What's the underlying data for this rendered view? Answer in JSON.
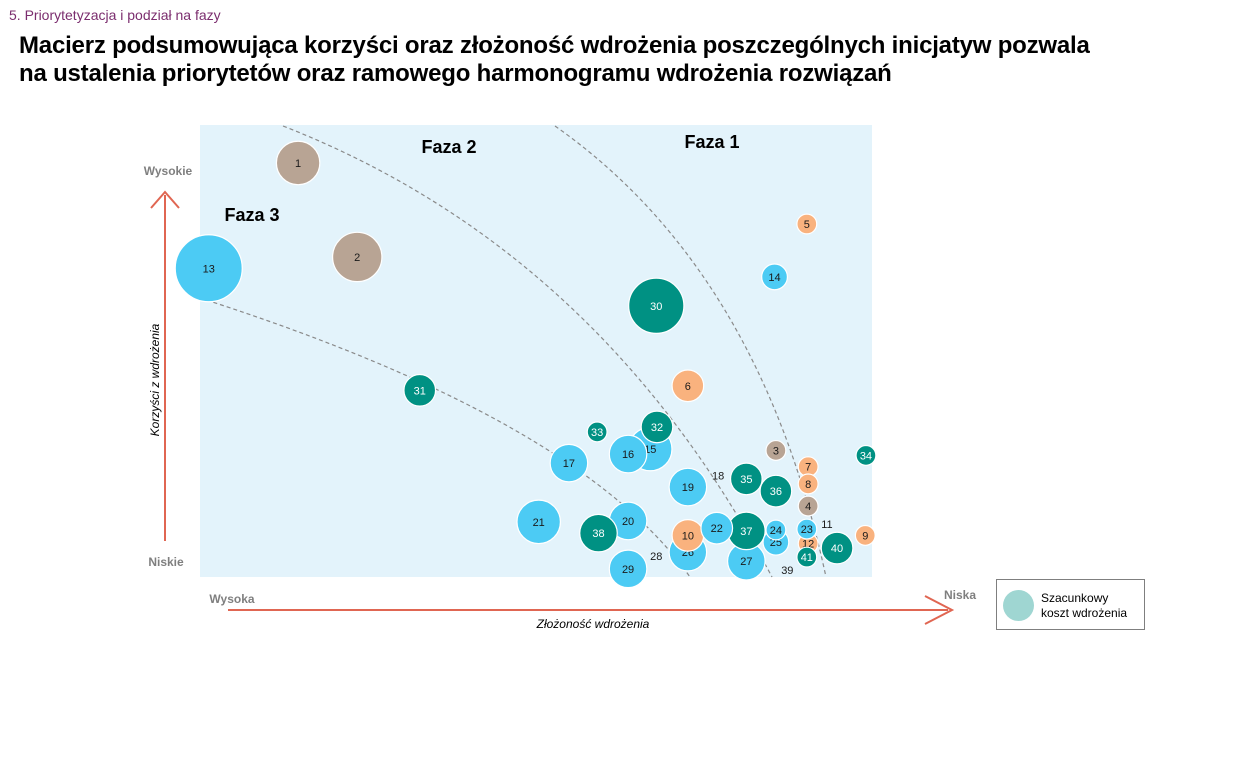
{
  "header": {
    "section": "5. Priorytetyzacja  i podział na fazy",
    "title_line1": "Macierz podsumowująca korzyści oraz złożoność wdrożenia poszczególnych inicjatyw pozwala",
    "title_line2": "na ustalenia priorytetów oraz ramowego harmonogramu wdrożenia rozwiązań"
  },
  "legend": {
    "line1": "Szacunkowy",
    "line2": "koszt wdrożenia"
  },
  "colors": {
    "teal": "#009183",
    "cyan": "#4ccbf4",
    "orange": "#f9b27e",
    "taupe": "#b8a494",
    "plot_bg": "#e3f3fb",
    "arrow": "#e06652"
  },
  "chart_data": {
    "type": "scatter",
    "subtype": "bubble",
    "xlabel": "Złożoność wdrożenia",
    "ylabel": "Korzyści z wdrożenia",
    "x_low_label": "Wysoka",
    "x_high_label": "Niska",
    "y_high_label": "Wysokie",
    "y_low_label": "Niskie",
    "xlim": [
      0,
      100
    ],
    "ylim": [
      0,
      100
    ],
    "phases": [
      "Faza 1",
      "Faza 2",
      "Faza 3"
    ],
    "points": [
      {
        "id": "1",
        "x": 14.6,
        "y": 91.6,
        "size": 3,
        "color": "taupe"
      },
      {
        "id": "2",
        "x": 23.4,
        "y": 70.8,
        "size": 3.5,
        "color": "taupe"
      },
      {
        "id": "3",
        "x": 85.7,
        "y": 28.0,
        "size": 1,
        "color": "taupe"
      },
      {
        "id": "4",
        "x": 90.5,
        "y": 15.7,
        "size": 1,
        "color": "taupe"
      },
      {
        "id": "5",
        "x": 90.3,
        "y": 78.1,
        "size": 1,
        "color": "orange"
      },
      {
        "id": "6",
        "x": 72.6,
        "y": 42.3,
        "size": 2,
        "color": "orange"
      },
      {
        "id": "7",
        "x": 90.5,
        "y": 24.4,
        "size": 1,
        "color": "orange"
      },
      {
        "id": "8",
        "x": 90.5,
        "y": 20.6,
        "size": 1,
        "color": "orange"
      },
      {
        "id": "9",
        "x": 99.0,
        "y": 9.2,
        "size": 1,
        "color": "orange"
      },
      {
        "id": "10",
        "x": 72.6,
        "y": 9.2,
        "size": 2,
        "color": "orange"
      },
      {
        "id": "11",
        "x": 93.3,
        "y": 11.7,
        "size": 0,
        "color": "none"
      },
      {
        "id": "12",
        "x": 90.5,
        "y": 7.4,
        "size": 1,
        "color": "orange"
      },
      {
        "id": "13",
        "x": 1.3,
        "y": 68.3,
        "size": 5,
        "color": "cyan"
      },
      {
        "id": "14",
        "x": 85.5,
        "y": 66.4,
        "size": 1.5,
        "color": "cyan"
      },
      {
        "id": "15",
        "x": 67.0,
        "y": 28.3,
        "size": 3,
        "color": "cyan"
      },
      {
        "id": "16",
        "x": 63.7,
        "y": 27.2,
        "size": 2.5,
        "color": "cyan"
      },
      {
        "id": "17",
        "x": 54.9,
        "y": 25.2,
        "size": 2.5,
        "color": "cyan"
      },
      {
        "id": "18",
        "x": 77.1,
        "y": 22.5,
        "size": 0,
        "color": "none"
      },
      {
        "id": "19",
        "x": 72.6,
        "y": 19.9,
        "size": 2.5,
        "color": "cyan"
      },
      {
        "id": "20",
        "x": 63.7,
        "y": 12.4,
        "size": 2.5,
        "color": "cyan"
      },
      {
        "id": "21",
        "x": 50.4,
        "y": 12.2,
        "size": 3,
        "color": "cyan"
      },
      {
        "id": "22",
        "x": 76.9,
        "y": 10.8,
        "size": 2,
        "color": "cyan"
      },
      {
        "id": "23",
        "x": 90.3,
        "y": 10.6,
        "size": 1,
        "color": "cyan"
      },
      {
        "id": "24",
        "x": 85.7,
        "y": 10.4,
        "size": 1,
        "color": "cyan"
      },
      {
        "id": "25",
        "x": 85.7,
        "y": 7.7,
        "size": 1.5,
        "color": "cyan"
      },
      {
        "id": "26",
        "x": 72.6,
        "y": 5.5,
        "size": 2.5,
        "color": "cyan"
      },
      {
        "id": "27",
        "x": 81.3,
        "y": 3.5,
        "size": 2.5,
        "color": "cyan"
      },
      {
        "id": "28",
        "x": 67.9,
        "y": 4.6,
        "size": 0,
        "color": "none"
      },
      {
        "id": "29",
        "x": 63.7,
        "y": 1.8,
        "size": 2.5,
        "color": "cyan"
      },
      {
        "id": "30",
        "x": 67.9,
        "y": 60.0,
        "size": 4,
        "color": "teal"
      },
      {
        "id": "31",
        "x": 32.7,
        "y": 41.3,
        "size": 2,
        "color": "teal"
      },
      {
        "id": "32",
        "x": 68.0,
        "y": 33.2,
        "size": 2,
        "color": "teal"
      },
      {
        "id": "33",
        "x": 59.1,
        "y": 32.1,
        "size": 1,
        "color": "teal"
      },
      {
        "id": "34",
        "x": 99.1,
        "y": 26.9,
        "size": 1,
        "color": "teal"
      },
      {
        "id": "35",
        "x": 81.3,
        "y": 21.7,
        "size": 2,
        "color": "teal"
      },
      {
        "id": "36",
        "x": 85.7,
        "y": 19.0,
        "size": 2,
        "color": "teal"
      },
      {
        "id": "37",
        "x": 81.3,
        "y": 10.2,
        "size": 2.5,
        "color": "teal"
      },
      {
        "id": "38",
        "x": 59.3,
        "y": 9.7,
        "size": 2.5,
        "color": "teal"
      },
      {
        "id": "39",
        "x": 87.4,
        "y": 1.5,
        "size": 0,
        "color": "none"
      },
      {
        "id": "40",
        "x": 94.8,
        "y": 6.4,
        "size": 2,
        "color": "teal"
      },
      {
        "id": "41",
        "x": 90.3,
        "y": 4.4,
        "size": 1,
        "color": "teal"
      }
    ]
  }
}
